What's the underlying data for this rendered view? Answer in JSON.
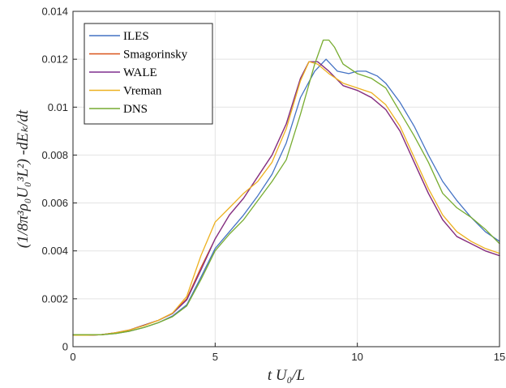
{
  "chart_data": {
    "type": "line",
    "title": "",
    "xlabel": "t U₀/L",
    "ylabel": "(1/8π³ρ₀U₀³L²) -dEₖ/dt",
    "xlim": [
      0,
      15
    ],
    "ylim": [
      0,
      0.014
    ],
    "xticks": [
      0,
      5,
      10,
      15
    ],
    "xtick_labels": [
      "0",
      "5",
      "10",
      "15"
    ],
    "yticks": [
      0,
      0.002,
      0.004,
      0.006,
      0.008,
      0.01,
      0.012,
      0.014
    ],
    "ytick_labels": [
      "0",
      "0.002",
      "0.004",
      "0.006",
      "0.008",
      "0.01",
      "0.012",
      "0.014"
    ],
    "grid": true,
    "legend_position": "top-left",
    "series": [
      {
        "name": "ILES",
        "color": "#4472c4",
        "x": [
          0,
          0.5,
          1,
          1.5,
          2,
          2.5,
          3,
          3.5,
          4,
          4.5,
          5,
          5.5,
          6,
          6.5,
          7,
          7.5,
          8,
          8.5,
          8.9,
          9.3,
          9.7,
          10,
          10.3,
          10.7,
          11,
          11.5,
          12,
          12.5,
          13,
          13.5,
          14,
          14.5,
          15
        ],
        "y": [
          0.00048,
          0.00048,
          0.0005,
          0.00055,
          0.00065,
          0.0008,
          0.001,
          0.00128,
          0.00175,
          0.0029,
          0.0041,
          0.0048,
          0.0055,
          0.0063,
          0.0072,
          0.0085,
          0.0104,
          0.0115,
          0.012,
          0.0115,
          0.0114,
          0.0115,
          0.0115,
          0.0113,
          0.011,
          0.0102,
          0.0092,
          0.008,
          0.0069,
          0.0061,
          0.0054,
          0.0048,
          0.0044
        ]
      },
      {
        "name": "Smagorinsky",
        "color": "#d95319",
        "x": [
          0,
          0.5,
          1,
          1.5,
          2,
          2.5,
          3,
          3.5,
          4,
          4.5,
          5,
          5.5,
          6,
          6.5,
          7,
          7.5,
          8,
          8.3,
          8.6,
          9,
          9.5,
          10,
          10.5,
          11,
          11.5,
          12,
          12.5,
          13,
          13.5,
          14,
          14.5,
          15
        ],
        "y": [
          0.00048,
          0.00048,
          0.0005,
          0.00058,
          0.0007,
          0.0009,
          0.0011,
          0.0014,
          0.002,
          0.0033,
          0.0045,
          0.0055,
          0.0062,
          0.0071,
          0.008,
          0.0093,
          0.0112,
          0.0119,
          0.0119,
          0.0115,
          0.0109,
          0.0107,
          0.0104,
          0.0099,
          0.009,
          0.0077,
          0.0064,
          0.0053,
          0.0046,
          0.0043,
          0.004,
          0.0038
        ]
      },
      {
        "name": "WALE",
        "color": "#7e2f8e",
        "x": [
          0,
          0.5,
          1,
          1.5,
          2,
          2.5,
          3,
          3.5,
          4,
          4.5,
          5,
          5.5,
          6,
          6.5,
          7,
          7.5,
          8,
          8.3,
          8.6,
          9,
          9.5,
          10,
          10.5,
          11,
          11.5,
          12,
          12.5,
          13,
          13.5,
          14,
          14.5,
          15
        ],
        "y": [
          0.00048,
          0.00048,
          0.0005,
          0.00058,
          0.0007,
          0.0009,
          0.0011,
          0.00138,
          0.00195,
          0.0032,
          0.0045,
          0.0055,
          0.0062,
          0.0071,
          0.008,
          0.0093,
          0.0112,
          0.0119,
          0.0119,
          0.0115,
          0.0109,
          0.0107,
          0.0104,
          0.0099,
          0.009,
          0.0077,
          0.0064,
          0.0053,
          0.0046,
          0.0043,
          0.004,
          0.0038
        ]
      },
      {
        "name": "Vreman",
        "color": "#edb120",
        "x": [
          0,
          0.5,
          1,
          1.5,
          2,
          2.5,
          3,
          3.5,
          4,
          4.5,
          5,
          5.5,
          6,
          6.5,
          7,
          7.5,
          8,
          8.3,
          8.6,
          9,
          9.5,
          10,
          10.5,
          11,
          11.5,
          12,
          12.5,
          13,
          13.5,
          14,
          14.5,
          15
        ],
        "y": [
          0.00048,
          0.00048,
          0.0005,
          0.00058,
          0.0007,
          0.00088,
          0.0011,
          0.0014,
          0.0021,
          0.0038,
          0.0052,
          0.0058,
          0.0064,
          0.0069,
          0.0077,
          0.0091,
          0.0111,
          0.0119,
          0.0118,
          0.0114,
          0.011,
          0.0108,
          0.0106,
          0.0101,
          0.0092,
          0.0079,
          0.0066,
          0.0055,
          0.0048,
          0.0044,
          0.0041,
          0.0039
        ]
      },
      {
        "name": "DNS",
        "color": "#77ac30",
        "x": [
          0,
          0.5,
          1,
          1.5,
          2,
          2.5,
          3,
          3.5,
          4,
          4.5,
          5,
          5.5,
          6,
          6.5,
          7,
          7.5,
          8,
          8.5,
          8.8,
          9,
          9.2,
          9.5,
          10,
          10.5,
          11,
          11.5,
          12,
          12.5,
          13,
          13.5,
          14,
          14.5,
          15
        ],
        "y": [
          0.0005,
          0.0005,
          0.0005,
          0.00055,
          0.00065,
          0.0008,
          0.001,
          0.00125,
          0.0017,
          0.0028,
          0.004,
          0.0047,
          0.0053,
          0.0061,
          0.0069,
          0.0078,
          0.0097,
          0.0118,
          0.0128,
          0.0128,
          0.0125,
          0.0118,
          0.0114,
          0.0112,
          0.0108,
          0.0098,
          0.0088,
          0.0077,
          0.0064,
          0.0058,
          0.0054,
          0.0049,
          0.0043
        ]
      }
    ]
  }
}
